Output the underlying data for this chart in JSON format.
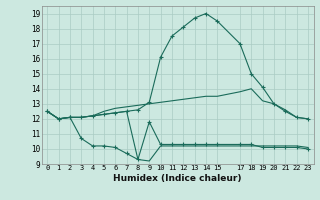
{
  "xlabel": "Humidex (Indice chaleur)",
  "bg_color": "#cce8e0",
  "grid_color": "#aaccc4",
  "line_color": "#1a6b5a",
  "xlim": [
    -0.5,
    23.5
  ],
  "ylim": [
    9,
    19.5
  ],
  "yticks": [
    9,
    10,
    11,
    12,
    13,
    14,
    15,
    16,
    17,
    18,
    19
  ],
  "xticks": [
    0,
    1,
    2,
    3,
    4,
    5,
    6,
    7,
    8,
    9,
    10,
    11,
    12,
    13,
    14,
    15,
    17,
    18,
    19,
    20,
    21,
    22,
    23
  ],
  "line1_x": [
    0,
    1,
    2,
    3,
    4,
    5,
    6,
    7,
    8,
    9,
    10,
    11,
    12,
    13,
    14,
    15,
    17,
    18,
    19,
    20,
    21,
    22,
    23
  ],
  "line1_y": [
    12.5,
    12.0,
    12.1,
    12.1,
    12.2,
    12.3,
    12.4,
    12.5,
    12.6,
    13.1,
    16.1,
    17.5,
    18.1,
    18.7,
    19.0,
    18.5,
    17.0,
    15.0,
    14.1,
    13.0,
    12.5,
    12.1,
    12.0
  ],
  "line2_x": [
    0,
    1,
    2,
    3,
    4,
    5,
    6,
    7,
    8,
    9,
    10,
    11,
    12,
    13,
    14,
    15,
    17,
    18,
    19,
    20,
    21,
    22,
    23
  ],
  "line2_y": [
    12.5,
    12.0,
    12.1,
    12.1,
    12.2,
    12.5,
    12.7,
    12.8,
    12.9,
    13.0,
    13.1,
    13.2,
    13.3,
    13.4,
    13.5,
    13.5,
    13.8,
    14.0,
    13.2,
    13.0,
    12.6,
    12.1,
    12.0
  ],
  "line3_x": [
    0,
    1,
    2,
    3,
    4,
    5,
    6,
    7,
    8,
    9,
    10,
    11,
    12,
    13,
    14,
    15,
    17,
    18,
    19,
    20,
    21,
    22,
    23
  ],
  "line3_y": [
    12.5,
    12.0,
    12.1,
    12.1,
    12.2,
    12.3,
    12.4,
    12.5,
    9.3,
    9.2,
    10.2,
    10.2,
    10.2,
    10.2,
    10.2,
    10.2,
    10.2,
    10.2,
    10.2,
    10.2,
    10.2,
    10.2,
    10.1
  ],
  "line4_x": [
    0,
    1,
    2,
    3,
    4,
    5,
    6,
    7,
    8,
    9,
    10,
    11,
    12,
    13,
    14,
    15,
    17,
    18,
    19,
    20,
    21,
    22,
    23
  ],
  "line4_y": [
    12.5,
    12.0,
    12.1,
    10.7,
    10.2,
    10.2,
    10.1,
    9.7,
    9.3,
    11.8,
    10.3,
    10.3,
    10.3,
    10.3,
    10.3,
    10.3,
    10.3,
    10.3,
    10.1,
    10.1,
    10.1,
    10.1,
    10.0
  ],
  "line1_markers": [
    9,
    10,
    11,
    12,
    13,
    14,
    15,
    17,
    18,
    19,
    20,
    21,
    22,
    23
  ],
  "line4_markers": [
    3,
    4,
    5,
    6,
    7,
    8,
    9
  ]
}
